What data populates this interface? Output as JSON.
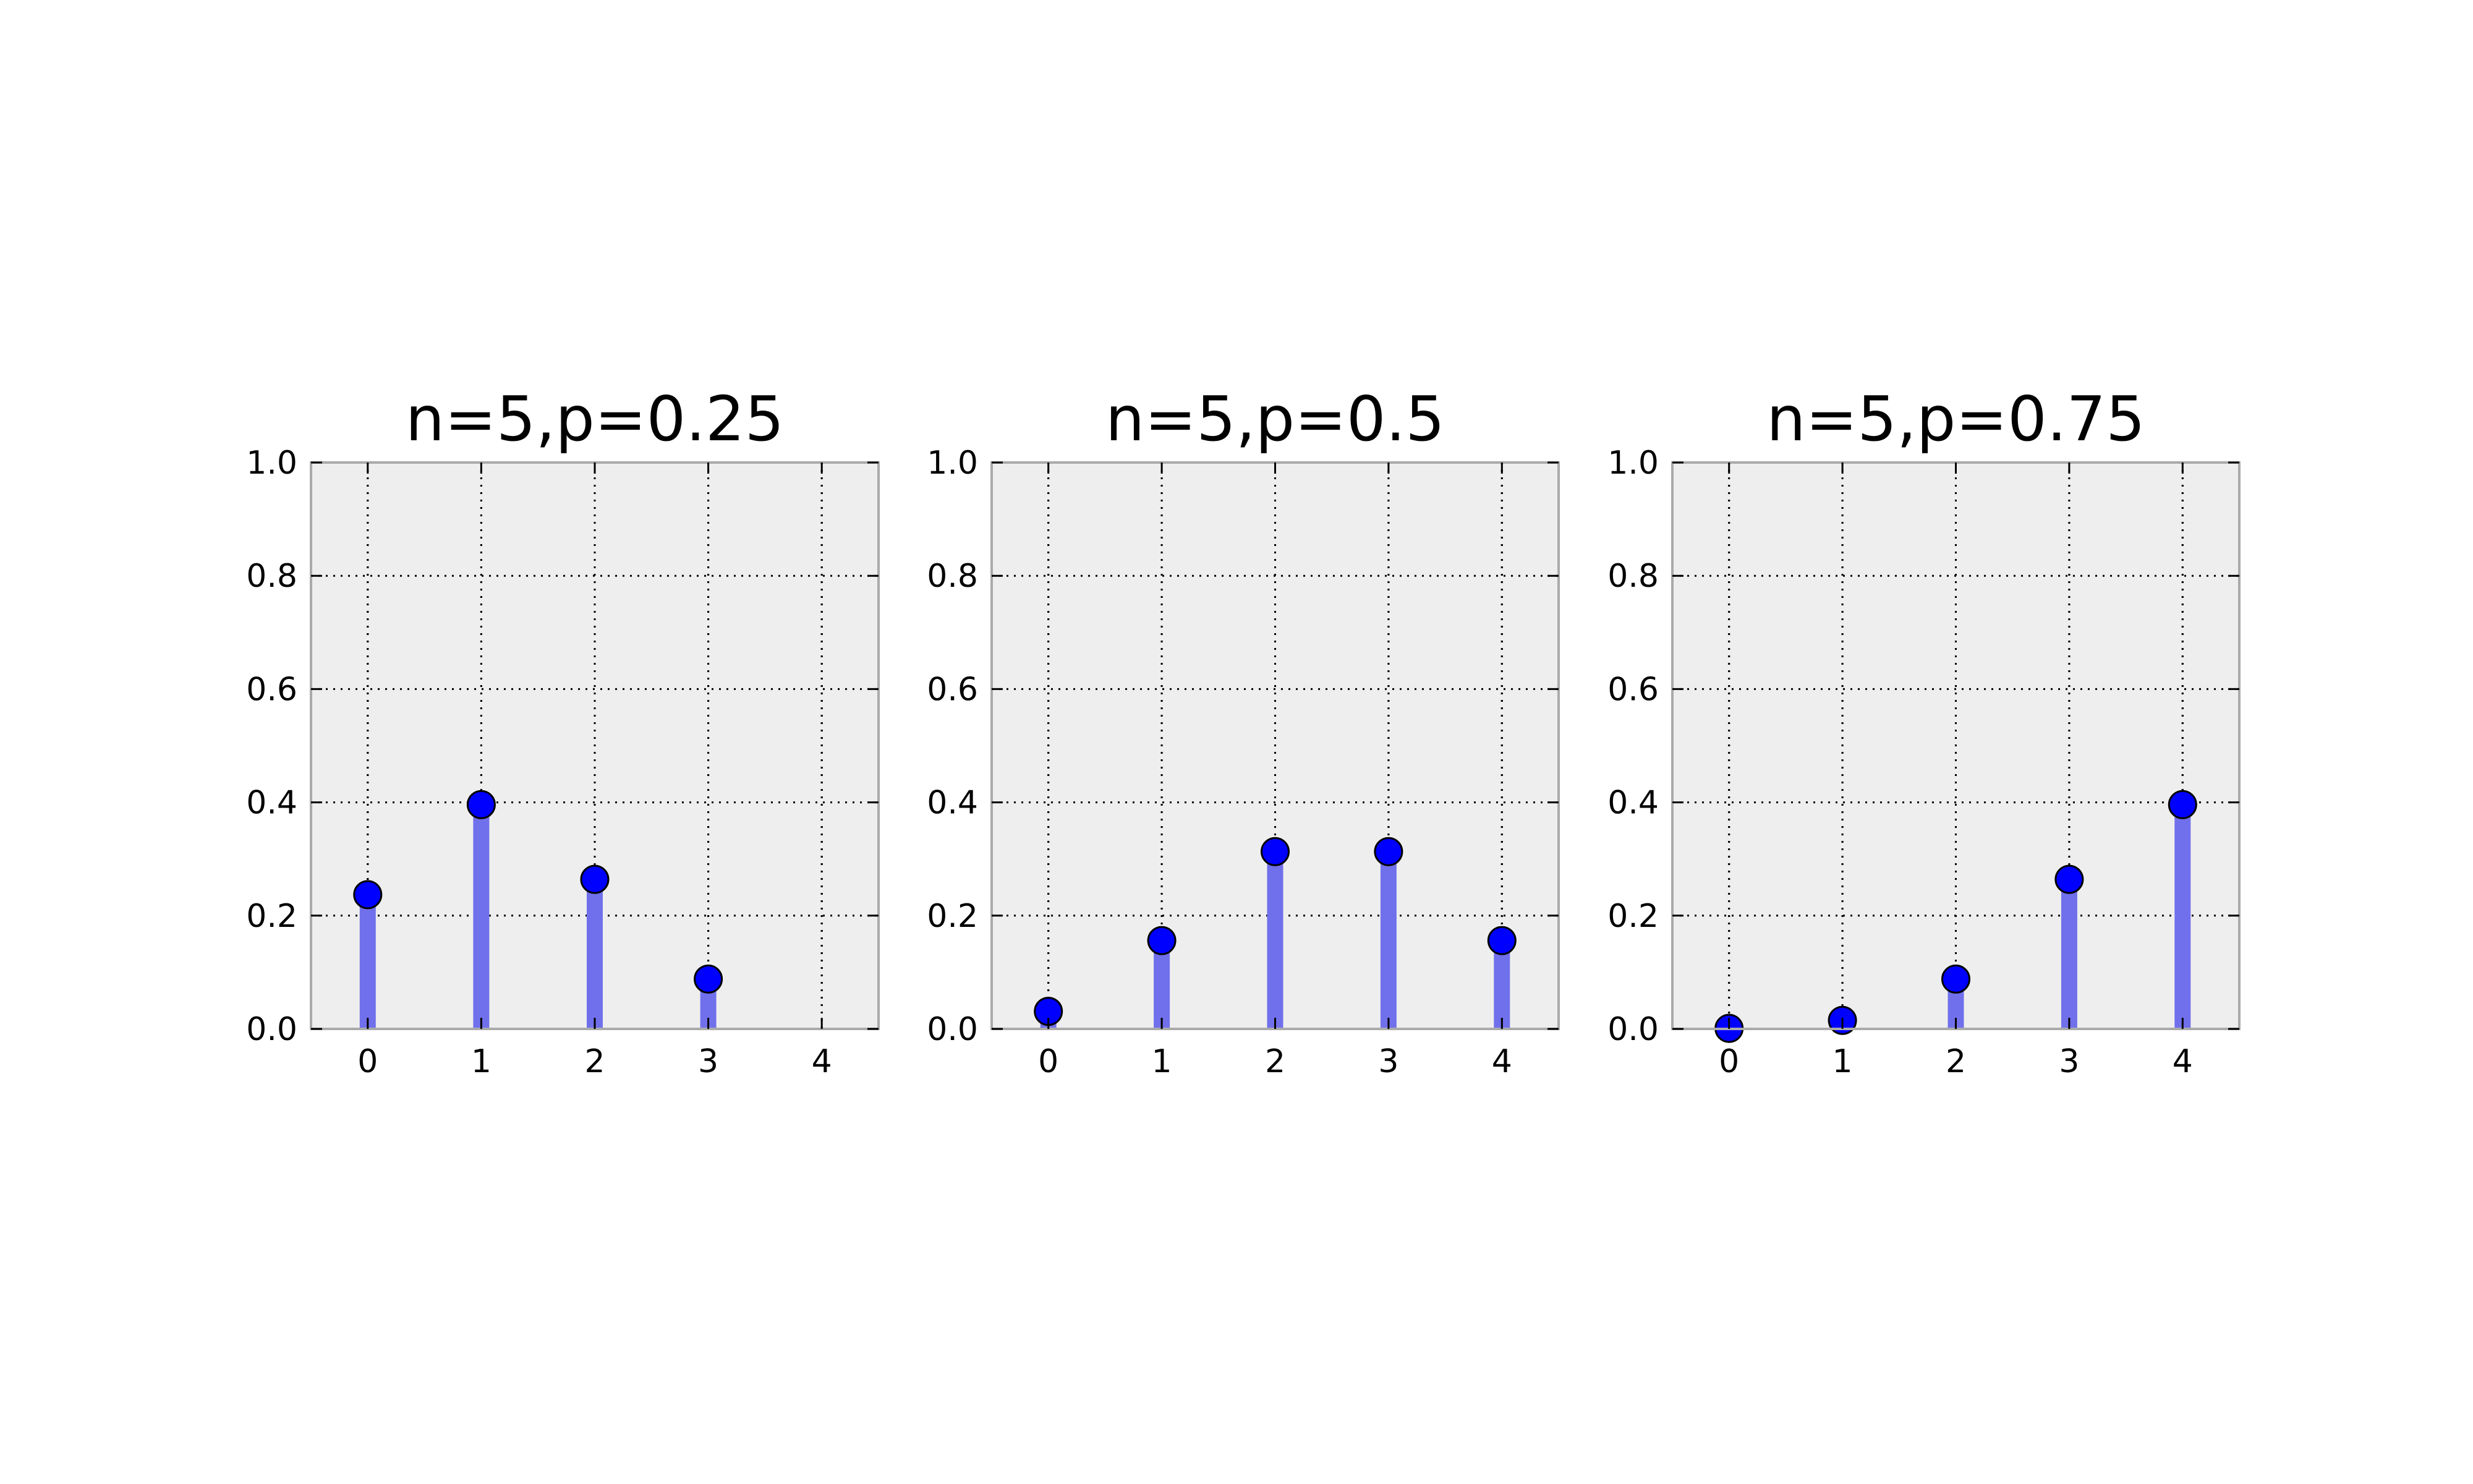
{
  "chart_data": [
    {
      "type": "stem",
      "title": "n=5,p=0.25",
      "xlabel": "",
      "ylabel": "",
      "x": [
        0,
        1,
        2,
        3,
        4
      ],
      "values": [
        0.237,
        0.396,
        0.264,
        0.088,
        0.0
      ],
      "xticks": [
        "0",
        "1",
        "2",
        "3",
        "4"
      ],
      "yticks": [
        "0.0",
        "0.2",
        "0.4",
        "0.6",
        "0.8",
        "1.0"
      ],
      "xlim": [
        -0.5,
        4.5
      ],
      "ylim": [
        0,
        1.0
      ],
      "grid": true
    },
    {
      "type": "stem",
      "title": "n=5,p=0.5",
      "xlabel": "",
      "ylabel": "",
      "x": [
        0,
        1,
        2,
        3,
        4
      ],
      "values": [
        0.031,
        0.156,
        0.313,
        0.313,
        0.156
      ],
      "xticks": [
        "0",
        "1",
        "2",
        "3",
        "4"
      ],
      "yticks": [
        "0.0",
        "0.2",
        "0.4",
        "0.6",
        "0.8",
        "1.0"
      ],
      "xlim": [
        -0.5,
        4.5
      ],
      "ylim": [
        0,
        1.0
      ],
      "grid": true
    },
    {
      "type": "stem",
      "title": "n=5,p=0.75",
      "xlabel": "",
      "ylabel": "",
      "x": [
        0,
        1,
        2,
        3,
        4
      ],
      "values": [
        0.001,
        0.015,
        0.088,
        0.264,
        0.396
      ],
      "xticks": [
        "0",
        "1",
        "2",
        "3",
        "4"
      ],
      "yticks": [
        "0.0",
        "0.2",
        "0.4",
        "0.6",
        "0.8",
        "1.0"
      ],
      "xlim": [
        -0.5,
        4.5
      ],
      "ylim": [
        0,
        1.0
      ],
      "grid": true
    }
  ],
  "colors": {
    "stem": "#7070ec",
    "marker": "#0000ff",
    "axes_background": "#eeeeee",
    "grid": "#000000",
    "frame": "#aaaaaa"
  }
}
